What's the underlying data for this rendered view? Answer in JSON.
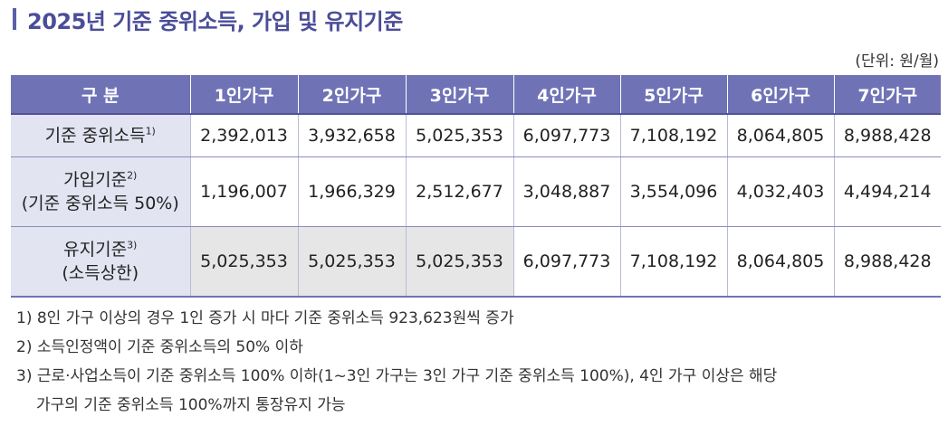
{
  "title": "2025년 기준 중위소득, 가입 및 유지기준",
  "unit": "(단위: 원/월)",
  "table": {
    "headers": [
      "구 분",
      "1인가구",
      "2인가구",
      "3인가구",
      "4인가구",
      "5인가구",
      "6인가구",
      "7인가구"
    ],
    "rows": [
      {
        "label": "기준 중위소득",
        "label_sup": "1)",
        "values": [
          "2,392,013",
          "3,932,658",
          "5,025,353",
          "6,097,773",
          "7,108,192",
          "8,064,805",
          "8,988,428"
        ]
      },
      {
        "label": "가입기준",
        "label_sup": "2)",
        "label_line2": "(기준 중위소득 50%)",
        "values": [
          "1,196,007",
          "1,966,329",
          "2,512,677",
          "3,048,887",
          "3,554,096",
          "4,032,403",
          "4,494,214"
        ]
      },
      {
        "label": "유지기준",
        "label_sup": "3)",
        "label_line2": "(소득상한)",
        "values": [
          "5,025,353",
          "5,025,353",
          "5,025,353",
          "6,097,773",
          "7,108,192",
          "8,064,805",
          "8,988,428"
        ]
      }
    ]
  },
  "notes": [
    "1) 8인 가구 이상의 경우 1인 증가 시 마다 기준 중위소득 923,623원씩 증가",
    "2) 소득인정액이 기준 중위소득의 50% 이하",
    "3) 근로·사업소득이 기준 중위소득 100% 이하(1~3인 가구는 3인 가구 기준 중위소득 100%), 4인 가구 이상은 해당",
    "가구의 기준 중위소득 100%까지 통장유지 가능"
  ],
  "colors": {
    "title": "#4a4d98",
    "header_bg": "#6f73b6",
    "label_bg": "#e3e4f2",
    "capped_bg": "#e6e6e6"
  }
}
